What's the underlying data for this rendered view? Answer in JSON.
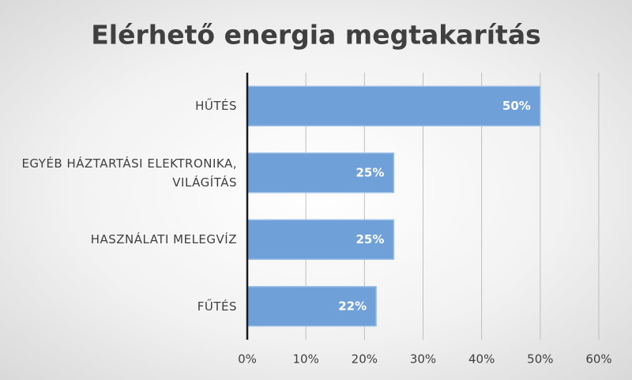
{
  "chart_data": {
    "type": "bar",
    "orientation": "horizontal",
    "title": "Elérhető energia megtakarítás",
    "categories": [
      "HŰTÉS",
      "EGYÉB HÁZTARTÁSI ELEKTRONIKA, VILÁGÍTÁS",
      "HASZNÁLATI MELEGVÍZ",
      "FŰTÉS"
    ],
    "values": [
      50,
      25,
      25,
      22
    ],
    "value_labels": [
      "50%",
      "25%",
      "25%",
      "22%"
    ],
    "color": "#6fa0d8",
    "xlim": [
      0,
      60
    ],
    "xticks": [
      {
        "value": 0,
        "label": "0%"
      },
      {
        "value": 10,
        "label": "10%"
      },
      {
        "value": 20,
        "label": "20%"
      },
      {
        "value": 30,
        "label": "30%"
      },
      {
        "value": 40,
        "label": "40%"
      },
      {
        "value": 50,
        "label": "50%"
      },
      {
        "value": 60,
        "label": "60%"
      }
    ],
    "grid": true
  }
}
